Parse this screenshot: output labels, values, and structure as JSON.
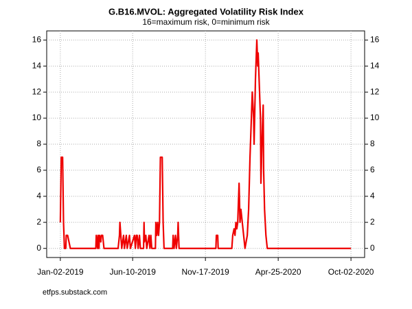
{
  "chart_data": {
    "type": "line",
    "title": "G.B16.MVOL: Aggregated Volatility Risk Index",
    "subtitle": "16=maximum risk, 0=minimum risk",
    "annotation": "etfps.substack.com",
    "x": [
      "2019-01-02",
      "2019-01-04",
      "2019-01-07",
      "2019-01-08",
      "2019-01-09",
      "2019-01-11",
      "2019-01-14",
      "2019-01-15",
      "2019-01-18",
      "2019-01-21",
      "2019-01-24",
      "2019-03-21",
      "2019-03-22",
      "2019-03-25",
      "2019-03-26",
      "2019-03-28",
      "2019-03-29",
      "2019-04-01",
      "2019-04-02",
      "2019-04-05",
      "2019-04-08",
      "2019-05-09",
      "2019-05-12",
      "2019-05-13",
      "2019-05-15",
      "2019-05-17",
      "2019-05-21",
      "2019-05-23",
      "2019-05-27",
      "2019-05-29",
      "2019-06-03",
      "2019-06-05",
      "2019-06-14",
      "2019-06-16",
      "2019-06-18",
      "2019-06-20",
      "2019-06-22",
      "2019-06-25",
      "2019-06-27",
      "2019-07-04",
      "2019-07-05",
      "2019-07-06",
      "2019-07-09",
      "2019-07-11",
      "2019-07-16",
      "2019-07-18",
      "2019-07-20",
      "2019-07-22",
      "2019-07-30",
      "2019-07-31",
      "2019-08-02",
      "2019-08-04",
      "2019-08-06",
      "2019-08-08",
      "2019-08-10",
      "2019-08-14",
      "2019-08-16",
      "2019-08-18",
      "2019-09-06",
      "2019-09-07",
      "2019-09-09",
      "2019-09-12",
      "2019-09-14",
      "2019-09-17",
      "2019-09-18",
      "2019-09-20",
      "2019-12-10",
      "2019-12-11",
      "2019-12-14",
      "2019-12-15",
      "2020-01-14",
      "2020-01-16",
      "2020-01-19",
      "2020-01-21",
      "2020-01-23",
      "2020-01-25",
      "2020-01-27",
      "2020-01-30",
      "2020-02-01",
      "2020-02-03",
      "2020-02-06",
      "2020-02-09",
      "2020-02-12",
      "2020-02-17",
      "2020-02-20",
      "2020-02-23",
      "2020-02-25",
      "2020-02-28",
      "2020-03-02",
      "2020-03-03",
      "2020-03-06",
      "2020-03-09",
      "2020-03-11",
      "2020-03-12",
      "2020-03-15",
      "2020-03-17",
      "2020-03-18",
      "2020-03-21",
      "2020-03-23",
      "2020-03-24",
      "2020-03-26",
      "2020-03-29",
      "2020-04-01",
      "2020-10-02"
    ],
    "series": [
      {
        "name": "G.B16.MVOL",
        "color": "#ee0000",
        "values": [
          2,
          7,
          7,
          4.5,
          2,
          0,
          0,
          1,
          1,
          0.5,
          0,
          0,
          1,
          0,
          1,
          0,
          1,
          0.5,
          1,
          1,
          0,
          0,
          1,
          2,
          1,
          0,
          1,
          0,
          1,
          0,
          1,
          0,
          1,
          0,
          1,
          1,
          0,
          1,
          0,
          0,
          2,
          0.5,
          1,
          0,
          1,
          0,
          1,
          0,
          0,
          2,
          1,
          2,
          1,
          2,
          7,
          7,
          2,
          0,
          0,
          1,
          0,
          1,
          0,
          1,
          2,
          0,
          0,
          1,
          1,
          0,
          0,
          1,
          1.5,
          1,
          2,
          1.5,
          2,
          5,
          2,
          3,
          2,
          1,
          0,
          1,
          3,
          7,
          9,
          12,
          10,
          8,
          13,
          16,
          14,
          15,
          12,
          10,
          5,
          9,
          11,
          6,
          3,
          1,
          0,
          0
        ]
      }
    ],
    "xlim": [
      "2018-12-03",
      "2020-11-01"
    ],
    "xticks": [
      {
        "value": "2019-01-02",
        "label": "Jan-02-2019"
      },
      {
        "value": "2019-06-10",
        "label": "Jun-10-2019"
      },
      {
        "value": "2019-11-17",
        "label": "Nov-17-2019"
      },
      {
        "value": "2020-04-25",
        "label": "Apr-25-2020"
      },
      {
        "value": "2020-10-02",
        "label": "Oct-02-2020"
      }
    ],
    "ylim": [
      -0.7,
      16.7
    ],
    "yticks": [
      0,
      2,
      4,
      6,
      8,
      10,
      12,
      14,
      16
    ],
    "y2lim": [
      -0.7,
      16.7
    ],
    "y2ticks": [
      0,
      2,
      4,
      6,
      8,
      10,
      12,
      14,
      16
    ],
    "grid": true
  }
}
